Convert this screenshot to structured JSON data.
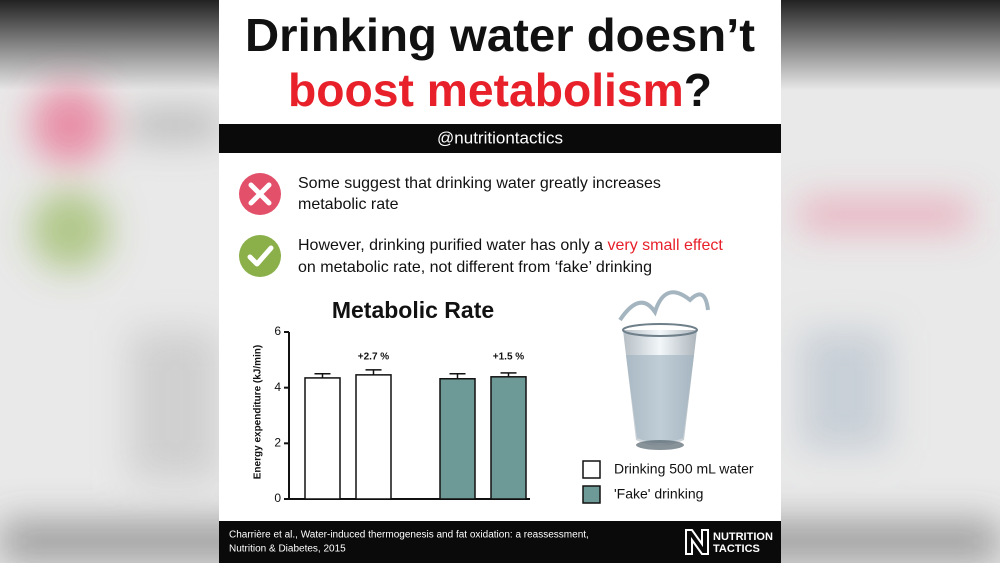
{
  "header": {
    "title_line1": "Drinking water doesn’t",
    "title_line2_red": "boost metabolism",
    "title_line2_end": "?",
    "handle": "@nutritiontactics"
  },
  "bullets": [
    {
      "parts": [
        "Some suggest that drinking water greatly increases",
        "metabolic rate"
      ]
    },
    {
      "parts": [
        "However, drinking purified water has only a ",
        "very small effect",
        "on metabolic rate, not different from ‘fake’ drinking"
      ]
    }
  ],
  "chart_data": {
    "type": "bar",
    "title": "Metabolic Rate",
    "y_label": "Energy expenditure (kJ/min)",
    "ylim": [
      0,
      6
    ],
    "yticks": [
      0,
      2,
      4,
      6
    ],
    "series": [
      {
        "name": "Drinking 500 mL water",
        "color": "#ffffff",
        "values": [
          4.35,
          4.46
        ],
        "errors": [
          0.15,
          0.18
        ],
        "annotation": "+2.7 %"
      },
      {
        "name": "'Fake' drinking",
        "color": "#6d9a96",
        "values": [
          4.32,
          4.39
        ],
        "errors": [
          0.18,
          0.14
        ],
        "annotation": "+1.5 %"
      }
    ]
  },
  "footer": {
    "citation": [
      "Charrière et al., Water-induced thermogenesis and fat oxidation: a reassessment,",
      "Nutrition & Diabetes, 2015"
    ],
    "logo": [
      "NUTRITION",
      "TACTICS"
    ]
  }
}
